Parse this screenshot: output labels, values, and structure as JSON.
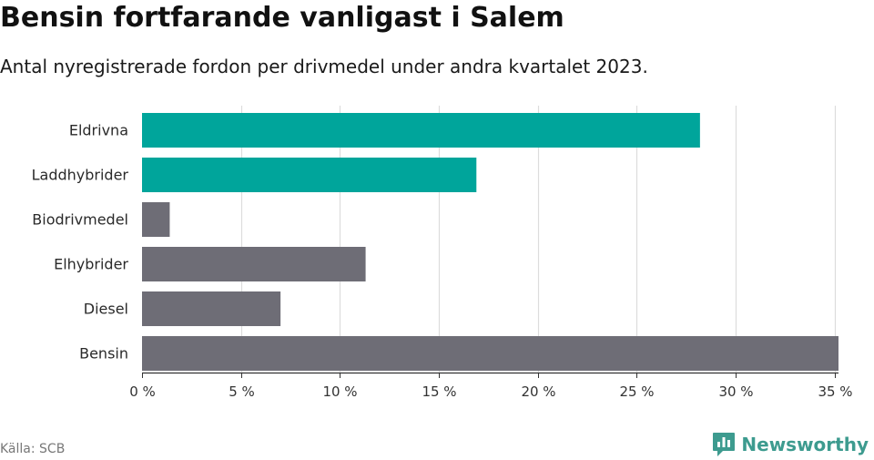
{
  "chart_data": {
    "type": "bar",
    "orientation": "horizontal",
    "title": "Bensin fortfarande vanligast i Salem",
    "subtitle": "Antal nyregistrerade fordon per drivmedel under andra kvartalet 2023.",
    "categories": [
      "Eldrivna",
      "Laddhybrider",
      "Biodrivmedel",
      "Elhybrider",
      "Diesel",
      "Bensin"
    ],
    "values": [
      28.2,
      16.9,
      1.4,
      11.3,
      7.0,
      35.2
    ],
    "bar_colors": [
      "#00a59b",
      "#00a59b",
      "#6e6d76",
      "#6e6d76",
      "#6e6d76",
      "#6e6d76"
    ],
    "xlim": [
      0,
      35.2
    ],
    "xticks": [
      0,
      5,
      10,
      15,
      20,
      25,
      30,
      35
    ],
    "xtick_labels": [
      "0 %",
      "5 %",
      "10 %",
      "15 %",
      "20 %",
      "25 %",
      "30 %",
      "35 %"
    ],
    "xlabel": "",
    "ylabel": "",
    "grid": true
  },
  "footer": {
    "source": "Källa: SCB",
    "brand": "Newsworthy"
  },
  "colors": {
    "accent": "#00a59b",
    "neutral": "#6e6d76",
    "brand": "#3d9b8f"
  }
}
